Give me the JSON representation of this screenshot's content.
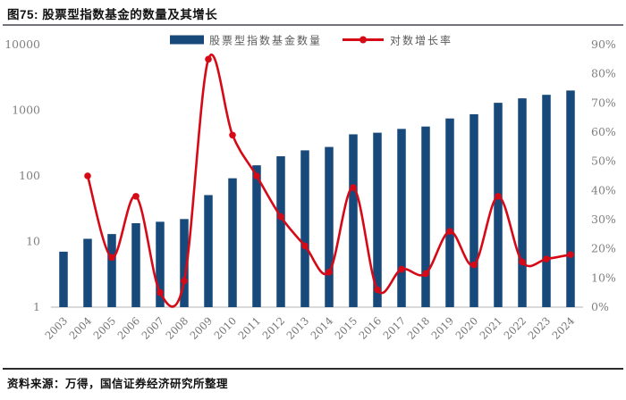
{
  "figure": {
    "title": "图75: 股票型指数基金的数量及其增长",
    "source": "资料来源：万得，国信证券经济研究所整理"
  },
  "colors": {
    "bar": "#17497a",
    "line": "#d60a17",
    "axis_text": "#7f7f7f",
    "legend_text": "#595959",
    "baseline": "#d9d9d9",
    "rule_top": "#73737d",
    "rule_bottom": "#2b2b2b"
  },
  "chart_data": {
    "type": "bar",
    "subtype": "bar+line combo, dual axis",
    "categories": [
      "2003",
      "2004",
      "2005",
      "2006",
      "2007",
      "2008",
      "2009",
      "2010",
      "2011",
      "2012",
      "2013",
      "2014",
      "2015",
      "2016",
      "2017",
      "2018",
      "2019",
      "2020",
      "2021",
      "2022",
      "2023",
      "2024"
    ],
    "series": [
      {
        "name": "股票型指数基金数量",
        "type": "bar",
        "axis": "left",
        "values": [
          7,
          11,
          13,
          19,
          20,
          22,
          51,
          92,
          145,
          199,
          245,
          276,
          430,
          455,
          520,
          565,
          750,
          870,
          1300,
          1520,
          1720,
          2000
        ]
      },
      {
        "name": "对数增长率",
        "type": "line",
        "axis": "right",
        "unit": "%",
        "values": [
          null,
          45,
          17,
          38,
          5,
          9,
          85,
          59,
          45,
          31,
          21,
          12,
          41,
          6,
          13,
          11.5,
          26,
          14.5,
          38,
          15.5,
          16.5,
          18
        ]
      }
    ],
    "left_axis": {
      "scale": "log",
      "ticks": [
        "1",
        "10",
        "100",
        "1000",
        "10000"
      ],
      "range": [
        1,
        10000
      ]
    },
    "right_axis": {
      "scale": "linear",
      "ticks": [
        "0%",
        "10%",
        "20%",
        "30%",
        "40%",
        "50%",
        "60%",
        "70%",
        "80%",
        "90%"
      ],
      "range": [
        0,
        90
      ]
    },
    "legend_position": "top-center",
    "grid": false
  }
}
